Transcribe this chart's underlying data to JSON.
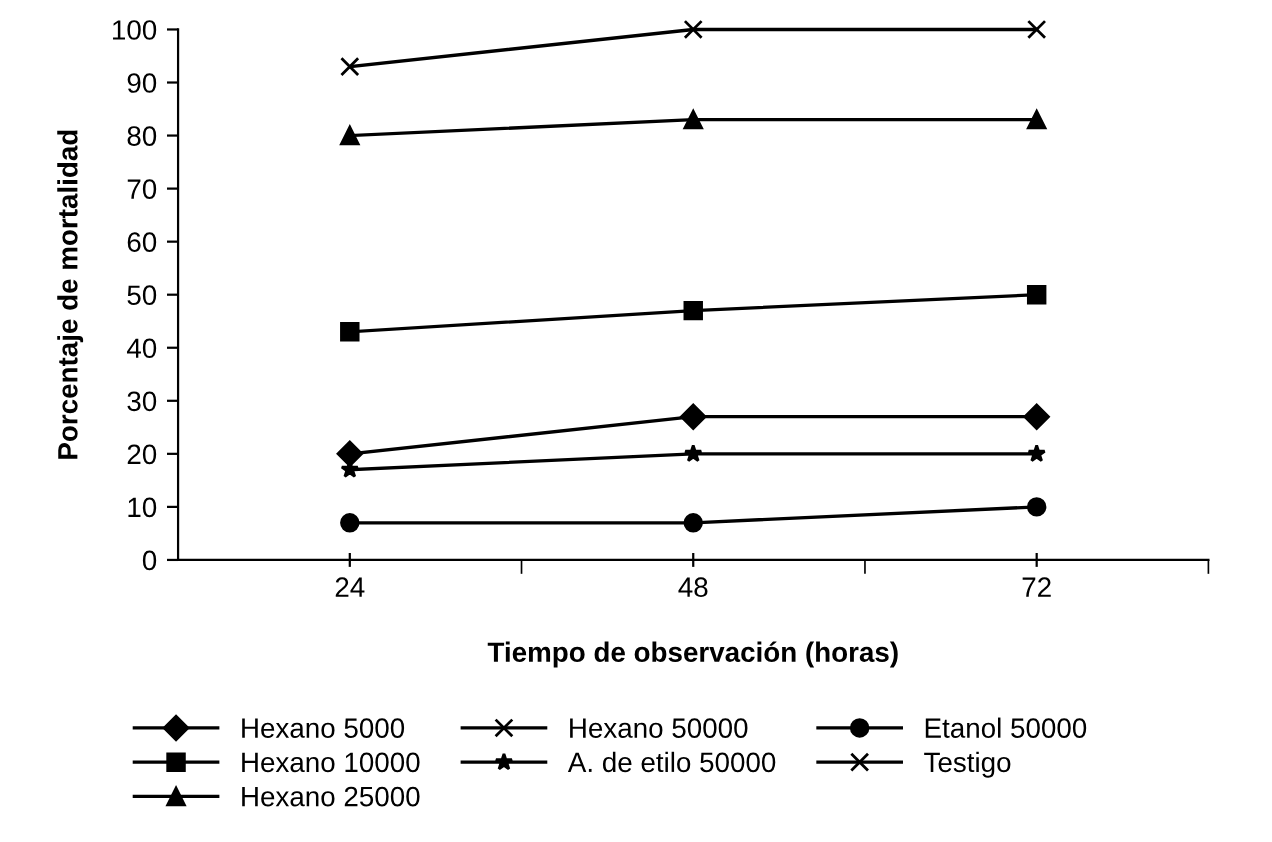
{
  "chart_data": {
    "type": "line",
    "xlabel": "Tiempo de observación (horas)",
    "ylabel": "Porcentaje de mortalidad",
    "categories": [
      "24",
      "48",
      "72"
    ],
    "series": [
      {
        "name": "Hexano 5000",
        "color": "#000000",
        "marker": "diamond",
        "values": [
          20,
          27,
          27
        ]
      },
      {
        "name": "Hexano 10000",
        "color": "#000000",
        "marker": "square",
        "values": [
          43,
          47,
          50
        ]
      },
      {
        "name": "Hexano 25000",
        "color": "#000000",
        "marker": "triangle",
        "values": [
          80,
          83,
          83
        ]
      },
      {
        "name": "Hexano 50000",
        "color": "#000000",
        "marker": "cross",
        "values": [
          93,
          100,
          100
        ]
      },
      {
        "name": "A. de etilo 50000",
        "color": "#000000",
        "marker": "star",
        "values": [
          17,
          20,
          20
        ]
      },
      {
        "name": "Etanol 50000",
        "color": "#000000",
        "marker": "circle",
        "values": [
          7,
          7,
          10
        ]
      },
      {
        "name": "Testigo",
        "color": "#000000",
        "marker": "cross",
        "values": [
          null,
          null,
          null
        ]
      }
    ],
    "ylim": [
      0,
      100
    ],
    "yticks": [
      0,
      10,
      20,
      30,
      40,
      50,
      60,
      70,
      80,
      90,
      100
    ],
    "grid": false,
    "legend": "bottom",
    "line_style": "solid"
  }
}
